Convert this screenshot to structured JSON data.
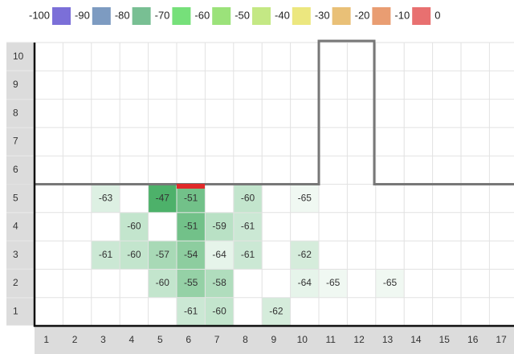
{
  "legend": [
    {
      "label": -100,
      "color": "#7b6fd8"
    },
    {
      "label": -90,
      "color": "#7d9bc1"
    },
    {
      "label": -80,
      "color": "#78bf93"
    },
    {
      "label": -70,
      "color": "#76e07a"
    },
    {
      "label": -60,
      "color": "#9be27a"
    },
    {
      "label": -50,
      "color": "#c4e884"
    },
    {
      "label": -40,
      "color": "#ece77f"
    },
    {
      "label": -30,
      "color": "#e9c077"
    },
    {
      "label": -20,
      "color": "#e99d72"
    },
    {
      "label": -10,
      "color": "#e87070"
    },
    {
      "label": 0
    }
  ],
  "cell_color": "#3aa95a",
  "row_labels": [
    10,
    9,
    8,
    7,
    6,
    5,
    4,
    3,
    2,
    1
  ],
  "col_labels": [
    1,
    2,
    3,
    4,
    5,
    6,
    7,
    8,
    9,
    10,
    11,
    12,
    13,
    14,
    15,
    16,
    17
  ],
  "cells": [
    {
      "row": 5,
      "col": 3,
      "value": -63
    },
    {
      "row": 5,
      "col": 5,
      "value": -47
    },
    {
      "row": 5,
      "col": 6,
      "value": -51
    },
    {
      "row": 5,
      "col": 8,
      "value": -60
    },
    {
      "row": 5,
      "col": 10,
      "value": -65
    },
    {
      "row": 4,
      "col": 4,
      "value": -60
    },
    {
      "row": 4,
      "col": 6,
      "value": -51
    },
    {
      "row": 4,
      "col": 7,
      "value": -59
    },
    {
      "row": 4,
      "col": 8,
      "value": -61
    },
    {
      "row": 3,
      "col": 3,
      "value": -61
    },
    {
      "row": 3,
      "col": 4,
      "value": -60
    },
    {
      "row": 3,
      "col": 5,
      "value": -57
    },
    {
      "row": 3,
      "col": 6,
      "value": -54
    },
    {
      "row": 3,
      "col": 7,
      "value": -64
    },
    {
      "row": 3,
      "col": 8,
      "value": -61
    },
    {
      "row": 3,
      "col": 10,
      "value": -62
    },
    {
      "row": 2,
      "col": 5,
      "value": -60
    },
    {
      "row": 2,
      "col": 6,
      "value": -55
    },
    {
      "row": 2,
      "col": 7,
      "value": -58
    },
    {
      "row": 2,
      "col": 10,
      "value": -64
    },
    {
      "row": 2,
      "col": 11,
      "value": -65
    },
    {
      "row": 2,
      "col": 13,
      "value": -65
    },
    {
      "row": 1,
      "col": 6,
      "value": -61
    },
    {
      "row": 1,
      "col": 7,
      "value": -60
    },
    {
      "row": 1,
      "col": 9,
      "value": -62
    }
  ]
}
